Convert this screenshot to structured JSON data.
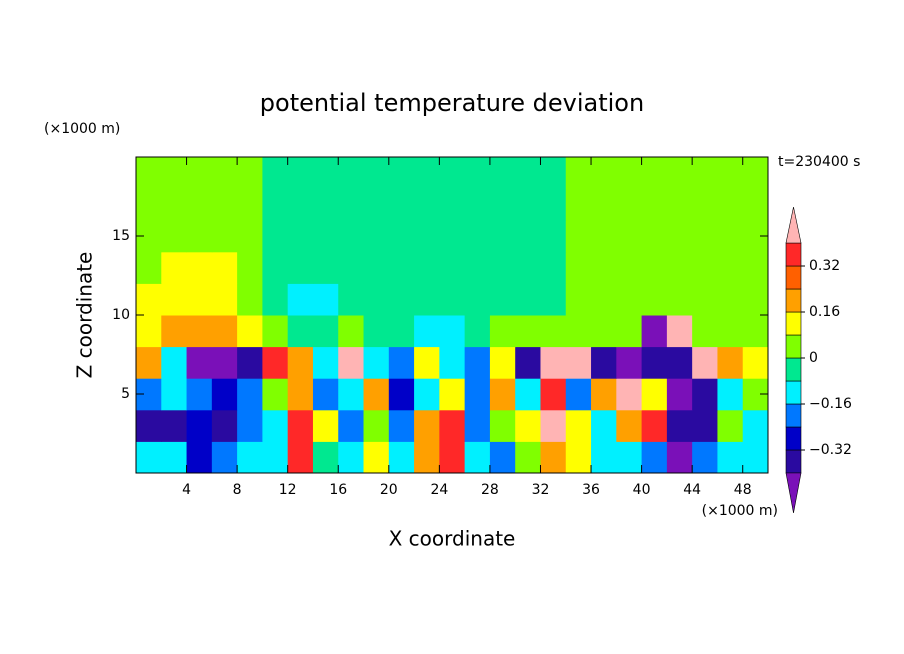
{
  "chart_data": {
    "type": "contour",
    "title": "potential temperature deviation",
    "xlabel": "X coordinate",
    "ylabel": "Z coordinate",
    "x_unit": "(×1000 m)",
    "y_unit": "(×1000 m)",
    "annotation": "t=230400 s",
    "xlim": [
      0,
      50
    ],
    "ylim": [
      0,
      20
    ],
    "xticks": [
      4,
      8,
      12,
      16,
      20,
      24,
      28,
      32,
      36,
      40,
      44,
      48
    ],
    "yticks": [
      5,
      10,
      15
    ],
    "x": [
      1,
      3,
      5,
      7,
      9,
      11,
      13,
      15,
      17,
      19,
      21,
      23,
      25,
      27,
      29,
      31,
      33,
      35,
      37,
      39,
      41,
      43,
      45,
      47,
      49
    ],
    "y": [
      1,
      3,
      5,
      7,
      9,
      11,
      13,
      15,
      17,
      19
    ],
    "z": [
      [
        -0.12,
        -0.12,
        -0.28,
        -0.2,
        -0.12,
        -0.12,
        0.36,
        -0.04,
        -0.12,
        0.12,
        -0.12,
        0.2,
        0.36,
        -0.12,
        -0.2,
        0.04,
        0.2,
        0.12,
        -0.12,
        -0.12,
        -0.2,
        -0.45,
        -0.2,
        -0.12,
        -0.12
      ],
      [
        -0.36,
        -0.36,
        -0.28,
        -0.36,
        -0.2,
        -0.12,
        0.36,
        0.12,
        -0.2,
        0.04,
        -0.2,
        0.2,
        0.36,
        -0.2,
        0.04,
        0.12,
        0.45,
        0.12,
        -0.12,
        0.2,
        0.36,
        -0.36,
        -0.36,
        0.04,
        -0.12
      ],
      [
        -0.2,
        -0.12,
        -0.2,
        -0.28,
        -0.2,
        0.04,
        0.2,
        -0.2,
        -0.12,
        0.2,
        -0.28,
        -0.12,
        0.12,
        -0.2,
        0.2,
        -0.12,
        0.36,
        -0.2,
        0.2,
        0.45,
        0.12,
        -0.45,
        -0.36,
        -0.12,
        0.04
      ],
      [
        0.2,
        -0.12,
        -0.45,
        -0.45,
        -0.36,
        0.36,
        0.2,
        -0.12,
        0.45,
        -0.12,
        -0.2,
        0.12,
        -0.12,
        -0.2,
        0.12,
        -0.36,
        0.45,
        0.45,
        -0.36,
        -0.45,
        -0.36,
        -0.36,
        0.45,
        0.2,
        0.12
      ],
      [
        0.12,
        0.2,
        0.2,
        0.2,
        0.12,
        0.04,
        -0.04,
        -0.04,
        0.04,
        -0.04,
        -0.04,
        -0.12,
        -0.12,
        -0.04,
        0.04,
        0.04,
        0.04,
        0.04,
        0.04,
        0.04,
        -0.45,
        0.45,
        0.04,
        0.04,
        0.04
      ],
      [
        0.12,
        0.12,
        0.12,
        0.12,
        0.04,
        -0.04,
        -0.12,
        -0.12,
        -0.04,
        -0.04,
        -0.04,
        -0.04,
        -0.04,
        -0.04,
        -0.04,
        -0.04,
        -0.04,
        0.04,
        0.04,
        0.04,
        0.04,
        0.04,
        0.04,
        0.04,
        0.04
      ],
      [
        0.04,
        0.12,
        0.12,
        0.12,
        0.04,
        -0.04,
        -0.04,
        -0.04,
        -0.04,
        -0.04,
        -0.04,
        -0.04,
        -0.04,
        -0.04,
        -0.04,
        -0.04,
        -0.04,
        0.04,
        0.04,
        0.04,
        0.04,
        0.04,
        0.04,
        0.04,
        0.04
      ],
      [
        0.04,
        0.04,
        0.04,
        0.04,
        0.04,
        -0.04,
        -0.04,
        -0.04,
        -0.04,
        -0.04,
        -0.04,
        -0.04,
        -0.04,
        -0.04,
        -0.04,
        -0.04,
        -0.04,
        0.04,
        0.04,
        0.04,
        0.04,
        0.04,
        0.04,
        0.04,
        0.04
      ],
      [
        0.04,
        0.04,
        0.04,
        0.04,
        0.04,
        -0.04,
        -0.04,
        -0.04,
        -0.04,
        -0.04,
        -0.04,
        -0.04,
        -0.04,
        -0.04,
        -0.04,
        -0.04,
        -0.04,
        0.04,
        0.04,
        0.04,
        0.04,
        0.04,
        0.04,
        0.04,
        0.04
      ],
      [
        0.04,
        0.04,
        0.04,
        0.04,
        0.04,
        -0.04,
        -0.04,
        -0.04,
        -0.04,
        -0.04,
        -0.04,
        -0.04,
        -0.04,
        -0.04,
        -0.04,
        -0.04,
        -0.04,
        0.04,
        0.04,
        0.04,
        0.04,
        0.04,
        0.04,
        0.04,
        0.04
      ]
    ],
    "colorbar": {
      "levels": [
        -0.4,
        -0.32,
        -0.24,
        -0.16,
        -0.08,
        0,
        0.08,
        0.16,
        0.24,
        0.32,
        0.4
      ],
      "colors": [
        "#7a10b8",
        "#2a0aa0",
        "#0000c8",
        "#0078ff",
        "#00f0ff",
        "#00e890",
        "#80ff00",
        "#ffff00",
        "#ffa000",
        "#ff6000",
        "#ff2828",
        "#ffb4b4"
      ],
      "ticks": [
        {
          "value": -0.32,
          "label": "−0.32"
        },
        {
          "value": -0.16,
          "label": "−0.16"
        },
        0,
        0.16,
        0.32
      ]
    }
  }
}
